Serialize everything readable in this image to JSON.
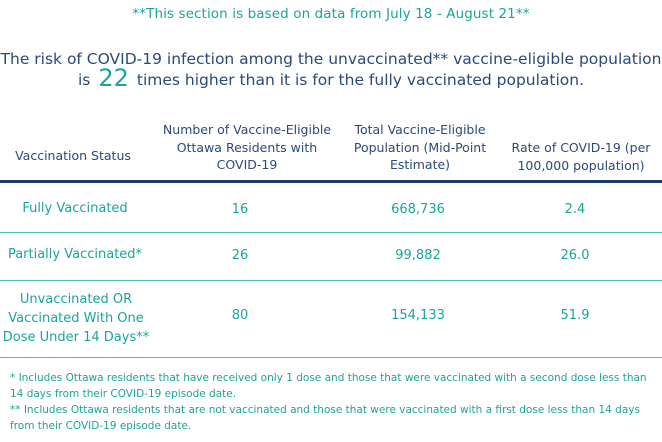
{
  "notice": "**This section is based on data from July 18 - August 21**",
  "risk_statement": {
    "line1": "The risk of COVID-19 infection among the unvaccinated** vaccine-eligible population",
    "prefix": "is",
    "multiplier": "22",
    "suffix": "times higher than it is for the fully vaccinated population."
  },
  "table": {
    "headers": [
      "Vaccination Status",
      "Number of Vaccine-Eligible Ottawa Residents with COVID-19",
      "Total Vaccine-Eligible Population (Mid-Point Estimate)",
      "Rate of COVID-19 (per 100,000 population)"
    ],
    "rows": [
      {
        "status": "Fully Vaccinated",
        "cases": "16",
        "population": "668,736",
        "rate": "2.4"
      },
      {
        "status": "Partially Vaccinated*",
        "cases": "26",
        "population": "99,882",
        "rate": "26.0"
      },
      {
        "status": "Unvaccinated OR Vaccinated With One Dose Under 14 Days**",
        "cases": "80",
        "population": "154,133",
        "rate": "51.9"
      }
    ]
  },
  "footnotes": [
    "* Includes Ottawa residents that have received only 1 dose and those that were vaccinated with a second dose less than 14 days from their COVID-19 episode date.",
    "** Includes Ottawa residents that are not vaccinated and those that were vaccinated with a first dose less than 14 days from their COVID-19 episode date."
  ],
  "colors": {
    "accent": "#1aa59a",
    "heading_text": "#2a4a7a",
    "header_rule": "#1d3968",
    "row_rule": "#4cc0b5"
  }
}
